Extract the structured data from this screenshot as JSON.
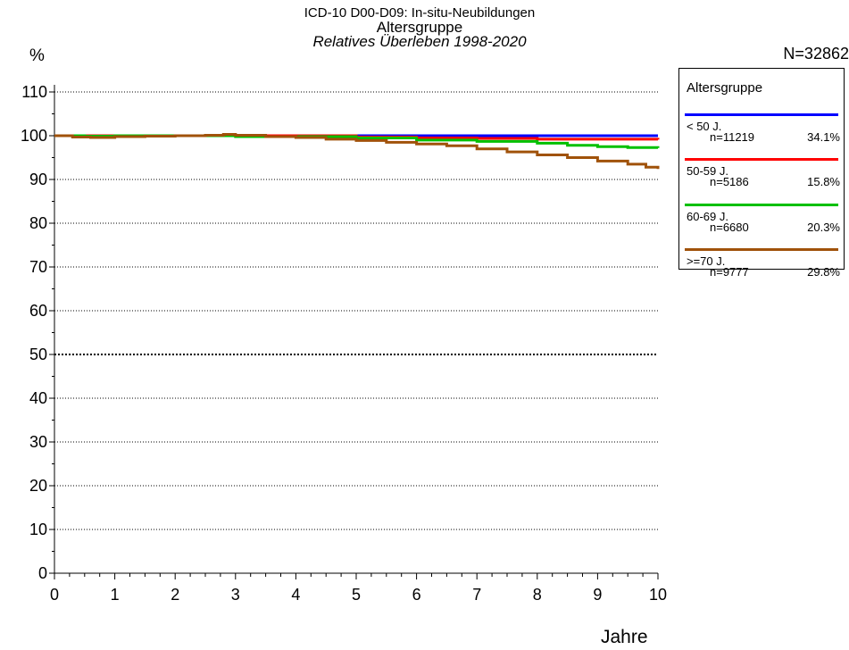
{
  "header": {
    "title_line1": "ICD-10 D00-D09: In-situ-Neubildungen",
    "title_line2": "Altersgruppe",
    "title_line3": "Relatives Überleben 1998-2020",
    "ylabel": "%",
    "total_n": "N=32862"
  },
  "legend": {
    "title": "Altersgruppe",
    "entries": [
      {
        "name": "< 50 J.",
        "n": "n=11219",
        "pct": "34.1%",
        "color": "#0000ff"
      },
      {
        "name": "50-59 J.",
        "n": "n=5186",
        "pct": "15.8%",
        "color": "#ff0000"
      },
      {
        "name": "60-69 J.",
        "n": "n=6680",
        "pct": "20.3%",
        "color": "#00c000"
      },
      {
        "name": ">=70 J.",
        "n": "n=9777",
        "pct": "29.8%",
        "color": "#a0520a"
      }
    ]
  },
  "chart_data": {
    "type": "line",
    "xlabel": "Jahre",
    "ylabel": "%",
    "xlim": [
      0,
      10
    ],
    "ylim": [
      0,
      110
    ],
    "x_ticks": [
      0,
      1,
      2,
      3,
      4,
      5,
      6,
      7,
      8,
      9,
      10
    ],
    "y_ticks": [
      0,
      10,
      20,
      30,
      40,
      50,
      60,
      70,
      80,
      90,
      100,
      110
    ],
    "grid": true,
    "legend_position": "right",
    "series": [
      {
        "name": "< 50 J.",
        "color": "#0000ff",
        "x": [
          0,
          1,
          2,
          3,
          4,
          5,
          6,
          7,
          8,
          9,
          10
        ],
        "y": [
          100,
          100,
          100,
          100,
          100,
          100,
          100,
          100,
          100,
          100,
          100
        ]
      },
      {
        "name": "50-59 J.",
        "color": "#ff0000",
        "x": [
          0,
          1,
          2,
          3,
          4,
          5,
          6,
          7,
          8,
          9,
          10
        ],
        "y": [
          100,
          100,
          100,
          100,
          100,
          99.7,
          99.5,
          99.4,
          99.2,
          99.2,
          99.1
        ]
      },
      {
        "name": "60-69 J.",
        "color": "#00c000",
        "x": [
          0,
          0.5,
          1,
          2,
          3,
          4,
          5,
          6,
          7,
          8,
          8.5,
          9,
          9.5,
          10
        ],
        "y": [
          100,
          99.9,
          100,
          100,
          99.8,
          99.8,
          99.5,
          99.0,
          98.7,
          98.3,
          97.8,
          97.5,
          97.3,
          97.2
        ]
      },
      {
        "name": ">=70 J.",
        "color": "#a0520a",
        "x": [
          0,
          0.3,
          0.6,
          1,
          1.5,
          2,
          2.5,
          2.8,
          3,
          3.5,
          4,
          4.5,
          5,
          5.5,
          6,
          6.5,
          7,
          7.5,
          8,
          8.5,
          9,
          9.5,
          9.8,
          10
        ],
        "y": [
          100,
          99.7,
          99.6,
          99.8,
          99.9,
          100,
          100.1,
          100.3,
          100.1,
          99.8,
          99.6,
          99.2,
          98.9,
          98.5,
          98.1,
          97.7,
          97.0,
          96.3,
          95.6,
          95.0,
          94.2,
          93.5,
          92.8,
          92.4
        ]
      }
    ]
  }
}
